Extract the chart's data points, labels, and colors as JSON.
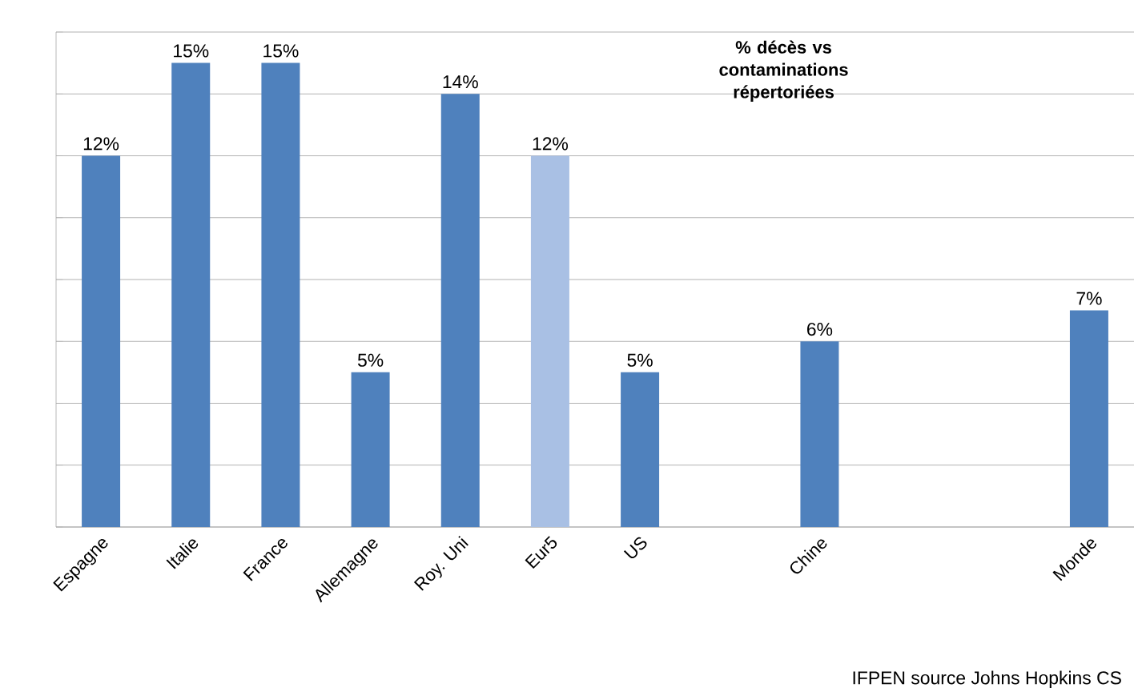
{
  "chart_data": {
    "type": "bar",
    "title": "% décès vs contaminations répertoriées",
    "categories": [
      "Espagne",
      "Italie",
      "France",
      "Allemagne",
      "Roy. Uni",
      "Eur5",
      "US",
      null,
      "Chine",
      null,
      null,
      "Monde"
    ],
    "values": [
      12,
      15,
      15,
      5,
      14,
      12,
      5,
      null,
      6,
      null,
      null,
      7
    ],
    "value_labels": [
      "12%",
      "15%",
      "15%",
      "5%",
      "14%",
      "12%",
      "5%",
      null,
      "6%",
      null,
      null,
      "7%"
    ],
    "colors": [
      "#4f81bd",
      "#4f81bd",
      "#4f81bd",
      "#4f81bd",
      "#4f81bd",
      "#a9c0e4",
      "#4f81bd",
      "#4f81bd",
      "#4f81bd",
      "#4f81bd",
      "#4f81bd",
      "#4f81bd"
    ],
    "ylim": [
      0,
      16
    ],
    "yticks": [
      {
        "value": 0,
        "label": null
      },
      {
        "value": 2,
        "label": null
      },
      {
        "value": 4,
        "label": null
      },
      {
        "value": 6,
        "label": null
      },
      {
        "value": 8,
        "label": null
      },
      {
        "value": 10,
        "label": null
      },
      {
        "value": 12,
        "label": null
      },
      {
        "value": 14,
        "label": null
      },
      {
        "value": 16,
        "label": null
      }
    ],
    "grid": "y",
    "tick_labels": "x",
    "annotations": [
      "IFPEN source Johns Hopkins CS"
    ]
  }
}
